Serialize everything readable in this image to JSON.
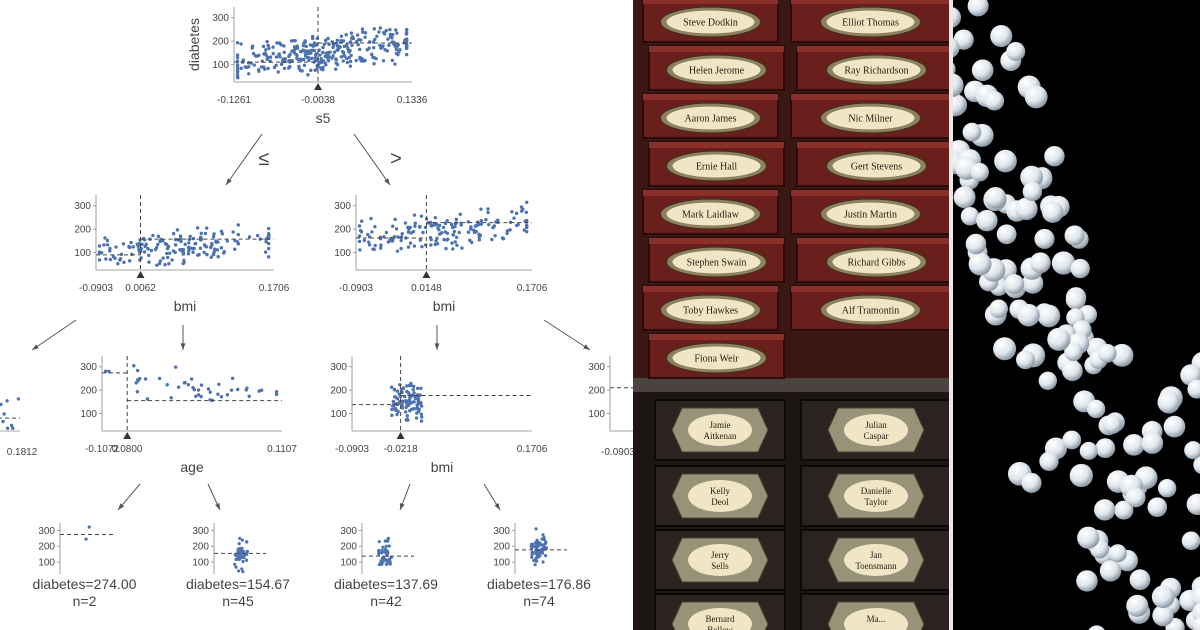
{
  "chart_data": {
    "type": "scatter",
    "title": "",
    "nodes": [
      {
        "id": "root",
        "feature": "s5",
        "ylabel": "diabetes",
        "split": "-0.0038",
        "xticks": [
          "-0.1261",
          "-0.0038",
          "0.1336"
        ],
        "yticks": [
          "100",
          "200",
          "300"
        ],
        "xlim": [
          -0.1261,
          0.1336
        ],
        "ylim": [
          25,
          346
        ],
        "left_mean": 110,
        "right_mean": 192
      },
      {
        "id": "left",
        "feature": "bmi",
        "split": "0.0062",
        "xticks": [
          "-0.0903",
          "0.0062",
          "0.1706"
        ],
        "yticks": [
          "100",
          "200",
          "300"
        ],
        "xlim": [
          -0.0903,
          0.1706
        ],
        "ylim": [
          25,
          346
        ],
        "left_mean": 90,
        "right_mean": 157
      },
      {
        "id": "right",
        "feature": "bmi",
        "split": "0.0148",
        "xticks": [
          "-0.0903",
          "0.0148",
          "0.1706"
        ],
        "yticks": [
          "100",
          "200",
          "300"
        ],
        "xlim": [
          -0.0903,
          0.1706
        ],
        "ylim": [
          25,
          346
        ],
        "left_mean": 162,
        "right_mean": 228
      },
      {
        "id": "left-left-partial",
        "feature": "",
        "split": "",
        "xticks": [
          "0.1812"
        ],
        "yticks": [],
        "xlim": [
          0,
          0.1812
        ],
        "ylim": [
          25,
          346
        ],
        "left_mean": 80,
        "right_mean": 80
      },
      {
        "id": "left-right",
        "feature": "age",
        "split": "-0.0800",
        "xticks": [
          "-0.1072",
          "0.0800",
          "0.1107"
        ],
        "yticks": [
          "100",
          "200",
          "300"
        ],
        "xlim": [
          -0.1072,
          0.1107
        ],
        "ylim": [
          25,
          346
        ],
        "left_mean": 274,
        "right_mean": 155
      },
      {
        "id": "right-left",
        "feature": "bmi",
        "split": "-0.0218",
        "xticks": [
          "-0.0903",
          "-0.0218",
          "0.1706"
        ],
        "yticks": [
          "100",
          "200",
          "300"
        ],
        "xlim": [
          -0.0903,
          0.1706
        ],
        "ylim": [
          25,
          346
        ],
        "left_mean": 138,
        "right_mean": 177
      },
      {
        "id": "right-right-partial",
        "feature": "",
        "split": "",
        "xticks": [
          "-0.0903"
        ],
        "yticks": [
          "100",
          "200",
          "300"
        ],
        "xlim": [
          -0.0903,
          0.1706
        ],
        "ylim": [
          25,
          346
        ],
        "left_mean": 210,
        "right_mean": 210
      }
    ],
    "edge_labels": {
      "left": "≤",
      "right": ">"
    },
    "leaves": [
      {
        "label": "diabetes=274.00",
        "n": "n=2",
        "value": 274.0,
        "count": 2
      },
      {
        "label": "diabetes=154.67",
        "n": "n=45",
        "value": 154.67,
        "count": 45
      },
      {
        "label": "diabetes=137.69",
        "n": "n=42",
        "value": 137.69,
        "count": 42
      },
      {
        "label": "diabetes=176.86",
        "n": "n=74",
        "value": 176.86,
        "count": 74
      }
    ],
    "leaf_yticks": [
      "100",
      "200",
      "300"
    ],
    "point_color": "#4c72b0",
    "line_color": "#444444"
  },
  "photo_boxes": {
    "upper_labels": [
      "Steve Dodkin",
      "Elliot Thomas",
      "Helen Jerome",
      "Ray Richardson",
      "Aaron James",
      "Nic Milner",
      "Ernie Hall",
      "Gert Stevens",
      "Mark Laidlaw",
      "Justin Martin",
      "Stephen Swain",
      "Richard Gibbs",
      "Toby Hawkes",
      "Alf Tramontin",
      "Fiona Weir"
    ],
    "lower_labels": [
      "Jamie Aitkenan",
      "Julian Caspar",
      "Kelly Deol",
      "Danielle Taylor",
      "Jerry Sells",
      "Jan Toensmann",
      "Bernard Bellew",
      "Ma..."
    ],
    "box_color": "#6b1f1c",
    "dark_box_color": "#2b2320",
    "plaque_color": "#efe6c6"
  },
  "photo_balls": {
    "background": "#000000",
    "ball_color": "#dfe6ec"
  }
}
